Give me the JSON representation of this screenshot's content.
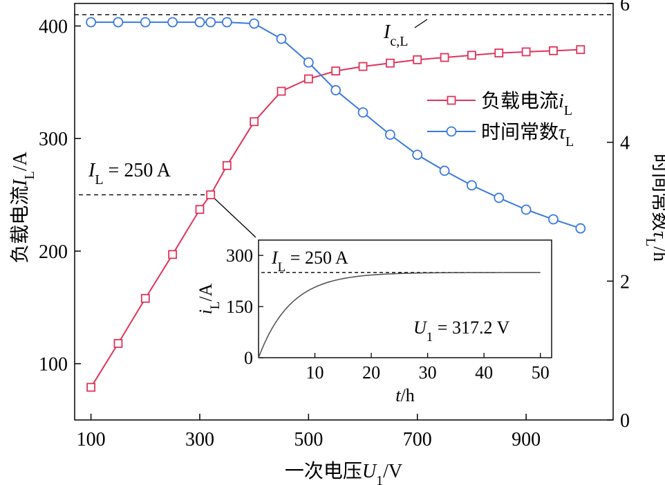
{
  "chart_data": {
    "type": "line",
    "x_label": {
      "prefix": "一次电压",
      "var": "U",
      "sub": "1",
      "unit": "/V"
    },
    "y_left_label": {
      "prefix": "负载电流",
      "var": "I",
      "sub": "L",
      "unit": "/A"
    },
    "y_right_label": {
      "prefix": "时间常数",
      "var": "τ",
      "sub": "L",
      "unit": "/h"
    },
    "x_ticks": [
      "100",
      "300",
      "500",
      "700",
      "900"
    ],
    "y_left_ticks": [
      "100",
      "200",
      "300",
      "400"
    ],
    "y_right_ticks": [
      "0",
      "2",
      "4",
      "6"
    ],
    "xlim": [
      70,
      1060
    ],
    "ylim_left": [
      50,
      420
    ],
    "ylim_right": [
      0,
      6
    ],
    "series": [
      {
        "name": "负载电流",
        "name_var": "i",
        "name_sub": "L",
        "axis": "left",
        "color": "#e0325a",
        "marker": "square",
        "x": [
          100,
          150,
          200,
          250,
          300,
          320,
          350,
          400,
          450,
          500,
          550,
          600,
          650,
          700,
          750,
          800,
          850,
          900,
          950,
          1000
        ],
        "y": [
          79,
          118,
          158,
          197,
          237,
          250,
          276,
          315,
          342,
          353,
          360,
          364,
          367,
          370,
          372,
          374,
          376,
          377,
          378,
          379
        ]
      },
      {
        "name": "时间常数",
        "name_var": "τ",
        "name_sub": "L",
        "axis": "right",
        "color": "#3a78e0",
        "marker": "circle",
        "x": [
          100,
          150,
          200,
          250,
          300,
          320,
          350,
          400,
          450,
          500,
          550,
          600,
          650,
          700,
          750,
          800,
          850,
          900,
          950,
          1000
        ],
        "y": [
          5.73,
          5.73,
          5.73,
          5.73,
          5.73,
          5.73,
          5.73,
          5.71,
          5.49,
          5.15,
          4.75,
          4.43,
          4.11,
          3.82,
          3.59,
          3.38,
          3.2,
          3.03,
          2.89,
          2.76
        ]
      }
    ],
    "annotations": {
      "icl": {
        "var": "I",
        "sub": "c,L",
        "value": 410
      },
      "il250": {
        "var": "I",
        "sub": "L",
        "text": " = 250 A",
        "x": 320,
        "y": 250
      }
    },
    "inset": {
      "type": "line",
      "xlabel": {
        "var": "t",
        "unit": "/h"
      },
      "ylabel": {
        "var": "i",
        "sub": "L",
        "unit": "/A"
      },
      "x_ticks": [
        "10",
        "20",
        "30",
        "40",
        "50"
      ],
      "y_ticks": [
        "0",
        "150",
        "300"
      ],
      "xlim": [
        0,
        52
      ],
      "ylim": [
        0,
        345
      ],
      "asymptote": 250,
      "time_constant": 5.7,
      "asymptote_label": {
        "var": "I",
        "sub": "L",
        "text": " = 250 A"
      },
      "note": {
        "var": "U",
        "sub": "1",
        "text": " = 317.2 V"
      }
    }
  }
}
